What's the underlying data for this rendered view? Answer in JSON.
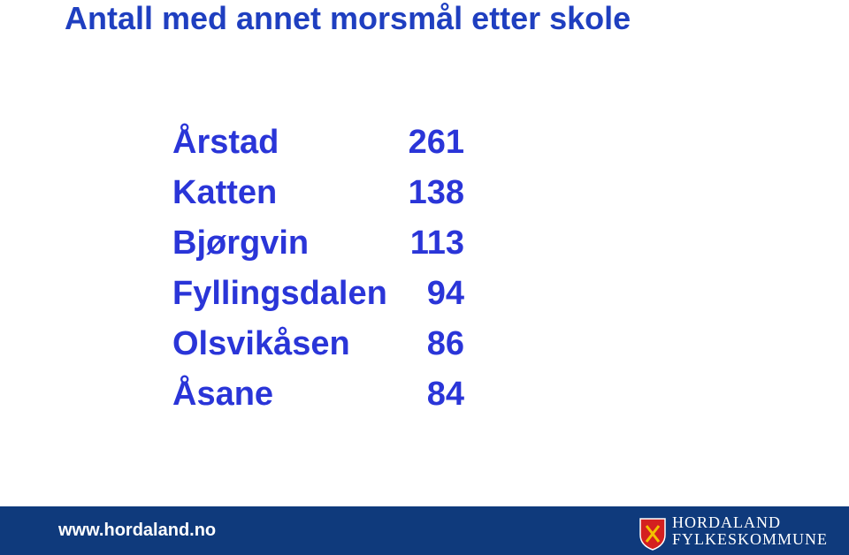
{
  "title": "Antall med annet morsmål etter skole",
  "table": {
    "rows": [
      [
        "Årstad",
        261
      ],
      [
        "Katten",
        138
      ],
      [
        "Bjørgvin",
        113
      ],
      [
        "Fyllingsdalen",
        94
      ],
      [
        "Olsvikåsen",
        86
      ],
      [
        "Åsane",
        84
      ]
    ]
  },
  "footer": {
    "url": "www.hordaland.no",
    "logo": {
      "line1": "HORDALAND",
      "line2": "FYLKESKOMMUNE"
    }
  }
}
